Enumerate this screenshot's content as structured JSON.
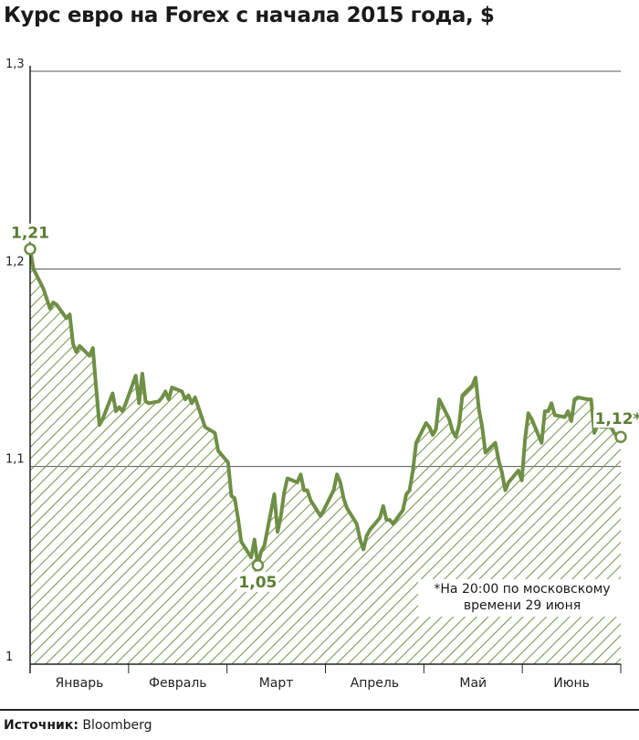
{
  "chart_data": {
    "type": "area",
    "title": "Курс евро на Forex с начала 2015 года, $",
    "ylim": [
      1.0,
      1.3
    ],
    "yticks": [
      "1",
      "1,1",
      "1,2",
      "1,3"
    ],
    "ytick_values": [
      1.0,
      1.1,
      1.2,
      1.3
    ],
    "months": [
      "Январь",
      "Февраль",
      "Март",
      "Апрель",
      "Май",
      "Июнь"
    ],
    "x": [
      1,
      2,
      5,
      6,
      7,
      8,
      9,
      12,
      13,
      14,
      15,
      16,
      19,
      20,
      21,
      22,
      23,
      26,
      27,
      28,
      29,
      30,
      33,
      34,
      35,
      36,
      37,
      40,
      41,
      42,
      43,
      44,
      47,
      48,
      49,
      50,
      51,
      54,
      55,
      56,
      57,
      58,
      61,
      62,
      63,
      64,
      65,
      68,
      69,
      70,
      71,
      72,
      75,
      76,
      77,
      78,
      79,
      82,
      83,
      84,
      85,
      86,
      89,
      90,
      93,
      94,
      95,
      96,
      97,
      100,
      101,
      102,
      103,
      104,
      107,
      108,
      109,
      110,
      111,
      114,
      115,
      116,
      117,
      118,
      121,
      122,
      123,
      124,
      125,
      128,
      129,
      130,
      131,
      132,
      135,
      136,
      137,
      138,
      139,
      142,
      143,
      144,
      145,
      146,
      149,
      150,
      151,
      152,
      153,
      156,
      157,
      158,
      159,
      160,
      163,
      164,
      165,
      166,
      167,
      170,
      171,
      172,
      173,
      174,
      177,
      178,
      179,
      180
    ],
    "values": [
      1.21,
      1.2,
      1.19,
      1.185,
      1.18,
      1.183,
      1.182,
      1.175,
      1.177,
      1.162,
      1.158,
      1.161,
      1.156,
      1.16,
      1.14,
      1.121,
      1.124,
      1.137,
      1.128,
      1.13,
      1.128,
      1.132,
      1.146,
      1.132,
      1.147,
      1.133,
      1.132,
      1.133,
      1.135,
      1.138,
      1.134,
      1.14,
      1.138,
      1.134,
      1.136,
      1.132,
      1.135,
      1.12,
      1.119,
      1.118,
      1.117,
      1.108,
      1.102,
      1.085,
      1.084,
      1.074,
      1.062,
      1.054,
      1.063,
      1.05,
      1.057,
      1.06,
      1.086,
      1.067,
      1.075,
      1.087,
      1.094,
      1.092,
      1.096,
      1.088,
      1.088,
      1.083,
      1.075,
      1.078,
      1.088,
      1.096,
      1.092,
      1.084,
      1.079,
      1.071,
      1.063,
      1.058,
      1.065,
      1.068,
      1.074,
      1.08,
      1.073,
      1.073,
      1.071,
      1.078,
      1.086,
      1.088,
      1.098,
      1.112,
      1.122,
      1.12,
      1.116,
      1.119,
      1.134,
      1.124,
      1.118,
      1.115,
      1.121,
      1.136,
      1.141,
      1.145,
      1.129,
      1.12,
      1.107,
      1.112,
      1.103,
      1.097,
      1.088,
      1.092,
      1.098,
      1.093,
      1.114,
      1.127,
      1.124,
      1.112,
      1.128,
      1.128,
      1.132,
      1.126,
      1.125,
      1.128,
      1.123,
      1.134,
      1.135,
      1.134,
      1.134,
      1.117,
      1.121,
      1.12,
      1.12,
      1.117,
      1.115,
      1.115
    ],
    "annotations": {
      "start": {
        "label": "1,21",
        "value": 1.21
      },
      "min": {
        "label": "1,05",
        "value": 1.05
      },
      "end": {
        "label": "1,12*",
        "value": 1.115
      }
    },
    "note_lines": [
      "*На 20:00 по московскому",
      "времени 29 июня"
    ],
    "colors": {
      "line": "#6e8f45",
      "hatch": "#7d9a55",
      "grid": "#555555",
      "label": "#5a7e33"
    },
    "grid": true
  },
  "source": {
    "label": "Источник:",
    "value": "Bloomberg"
  }
}
